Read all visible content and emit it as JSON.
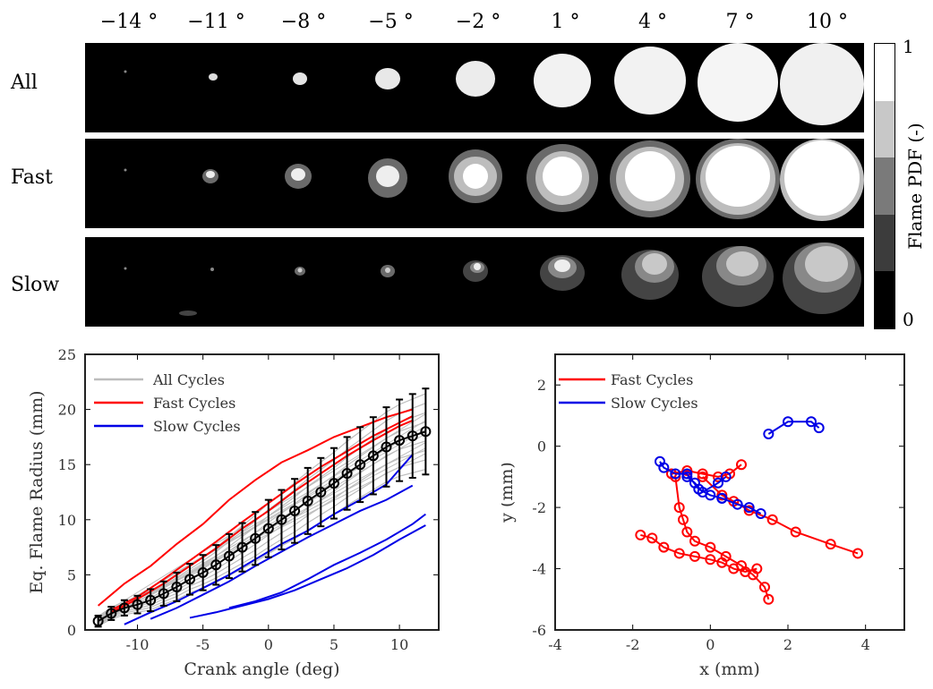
{
  "angles": [
    "−14 °",
    "−11 °",
    "−8 °",
    "−5 °",
    "−2 °",
    "1 °",
    "4 °",
    "7 °",
    "10 °"
  ],
  "rows": [
    "All",
    "Fast",
    "Slow"
  ],
  "colorbar": {
    "label": "Flame PDF (-)",
    "min": "0",
    "max": "1",
    "levels": [
      "#ffffff",
      "#c8c8c8",
      "#7a7a7a",
      "#3c3c3c",
      "#000000"
    ]
  },
  "colors": {
    "all": "#bdbdbd",
    "fast": "#ff0000",
    "slow": "#0000e6",
    "mean": "#000000"
  },
  "chart_data": [
    {
      "type": "line",
      "xlabel": "Crank angle (deg)",
      "ylabel": "Eq. Flame Radius (mm)",
      "xlim": [
        -14,
        13
      ],
      "ylim": [
        0,
        25
      ],
      "xticks": [
        -10,
        -5,
        0,
        5,
        10
      ],
      "yticks": [
        0,
        5,
        10,
        15,
        20,
        25
      ],
      "legend_position": "top-left",
      "legend": [
        "All Cycles",
        "Fast Cycles",
        "Slow Cycles"
      ],
      "mean_with_errorbars": {
        "x": [
          -13,
          -12,
          -11,
          -10,
          -9,
          -8,
          -7,
          -6,
          -5,
          -4,
          -3,
          -2,
          -1,
          0,
          1,
          2,
          3,
          4,
          5,
          6,
          7,
          8,
          9,
          10,
          11,
          12
        ],
        "y": [
          0.8,
          1.5,
          2.0,
          2.3,
          2.7,
          3.3,
          3.9,
          4.6,
          5.2,
          5.9,
          6.7,
          7.5,
          8.3,
          9.2,
          10.0,
          10.8,
          11.7,
          12.5,
          13.3,
          14.2,
          15.0,
          15.8,
          16.6,
          17.2,
          17.6,
          18.0
        ],
        "err": [
          0.5,
          0.6,
          0.7,
          0.8,
          1.0,
          1.1,
          1.3,
          1.4,
          1.6,
          1.8,
          2.0,
          2.2,
          2.4,
          2.6,
          2.7,
          2.9,
          3.0,
          3.1,
          3.2,
          3.3,
          3.4,
          3.5,
          3.6,
          3.7,
          3.8,
          3.9
        ]
      },
      "series": [
        {
          "name": "Fast Cycles",
          "x": [
            -13,
            -11,
            -9,
            -7,
            -5,
            -3,
            -1,
            1,
            3,
            5,
            7,
            9,
            11
          ],
          "y": [
            2.2,
            4.2,
            5.8,
            7.8,
            9.6,
            11.8,
            13.6,
            15.2,
            16.3,
            17.5,
            18.4,
            19.3,
            20.0
          ]
        },
        {
          "name": "Fast Cycles",
          "x": [
            -12,
            -10,
            -8,
            -6,
            -4,
            -2,
            0,
            2,
            4,
            6,
            8,
            10,
            11
          ],
          "y": [
            1.8,
            3.0,
            4.6,
            6.3,
            8.0,
            9.8,
            11.5,
            13.2,
            14.8,
            16.2,
            17.6,
            18.8,
            19.4
          ]
        },
        {
          "name": "Fast Cycles",
          "x": [
            -12,
            -10,
            -8,
            -6,
            -4,
            -2,
            0,
            2,
            4,
            6,
            8,
            10,
            11
          ],
          "y": [
            1.6,
            2.8,
            4.2,
            5.8,
            7.4,
            9.2,
            10.8,
            12.6,
            14.2,
            15.8,
            17.2,
            18.5,
            19.0
          ]
        },
        {
          "name": "Slow Cycles",
          "x": [
            -11,
            -9,
            -7,
            -5,
            -3,
            -1,
            1,
            3,
            5,
            7,
            9,
            11
          ],
          "y": [
            0.5,
            1.6,
            2.6,
            3.8,
            5.0,
            6.4,
            7.8,
            9.0,
            10.5,
            11.8,
            13.2,
            15.9
          ]
        },
        {
          "name": "Slow Cycles",
          "x": [
            -9,
            -7,
            -5,
            -3,
            -1,
            1,
            3,
            5,
            7,
            9,
            11
          ],
          "y": [
            1.0,
            2.0,
            3.2,
            4.4,
            5.8,
            7.1,
            8.4,
            9.6,
            10.8,
            11.8,
            13.1
          ]
        },
        {
          "name": "Slow Cycles",
          "x": [
            -3,
            -1,
            1,
            3,
            5,
            7,
            9,
            11,
            12
          ],
          "y": [
            2.0,
            2.6,
            3.4,
            4.6,
            5.9,
            7.0,
            8.2,
            9.6,
            10.5
          ]
        },
        {
          "name": "Slow Cycles",
          "x": [
            -6,
            -4,
            -2,
            0,
            2,
            4,
            6,
            8,
            10,
            12
          ],
          "y": [
            1.1,
            1.6,
            2.2,
            2.8,
            3.6,
            4.6,
            5.6,
            6.8,
            8.2,
            9.5
          ]
        }
      ],
      "all_cycles": [
        {
          "x": [
            -13,
            12
          ],
          "y": [
            1.0,
            18.5
          ]
        },
        {
          "x": [
            -13,
            12
          ],
          "y": [
            0.6,
            17.0
          ]
        },
        {
          "x": [
            -13,
            12
          ],
          "y": [
            0.9,
            19.0
          ]
        },
        {
          "x": [
            -13,
            12
          ],
          "y": [
            0.7,
            16.5
          ]
        },
        {
          "x": [
            -13,
            12
          ],
          "y": [
            1.2,
            19.6
          ]
        },
        {
          "x": [
            -13,
            12
          ],
          "y": [
            0.5,
            17.8
          ]
        },
        {
          "x": [
            -13,
            12
          ],
          "y": [
            0.8,
            16.0
          ]
        },
        {
          "x": [
            -13,
            12
          ],
          "y": [
            1.1,
            18.2
          ]
        }
      ]
    },
    {
      "type": "scatter",
      "xlabel": "x (mm)",
      "ylabel": "y (mm)",
      "xlim": [
        -4,
        5
      ],
      "ylim": [
        -6,
        3
      ],
      "xticks": [
        -4,
        -2,
        0,
        2,
        4
      ],
      "yticks": [
        -6,
        -4,
        -2,
        0,
        2
      ],
      "legend_position": "top-left",
      "legend": [
        "Fast Cycles",
        "Slow Cycles"
      ],
      "series": [
        {
          "name": "Fast Cycles",
          "x": [
            -0.2,
            0.3,
            0.6,
            1.0,
            1.6,
            2.2,
            3.1,
            3.8
          ],
          "y": [
            -1.0,
            -1.6,
            -1.8,
            -2.1,
            -2.4,
            -2.8,
            -3.2,
            -3.5
          ]
        },
        {
          "name": "Fast Cycles",
          "x": [
            -1.8,
            -1.5,
            -1.2,
            -0.8,
            -0.4,
            0.0,
            0.3,
            0.6,
            0.9,
            1.2
          ],
          "y": [
            -2.9,
            -3.0,
            -3.3,
            -3.5,
            -3.6,
            -3.7,
            -3.8,
            -4.0,
            -4.1,
            -4.0
          ]
        },
        {
          "name": "Fast Cycles",
          "x": [
            -0.9,
            -0.8,
            -0.7,
            -0.6,
            -0.4,
            0.0,
            0.4,
            0.8,
            1.1,
            1.4,
            1.5
          ],
          "y": [
            -1.0,
            -2.0,
            -2.4,
            -2.8,
            -3.1,
            -3.3,
            -3.6,
            -3.9,
            -4.2,
            -4.6,
            -5.0
          ]
        },
        {
          "name": "Fast Cycles",
          "x": [
            -1.0,
            -0.6,
            -0.2,
            0.2,
            0.5,
            0.8
          ],
          "y": [
            -0.9,
            -0.8,
            -0.9,
            -1.0,
            -0.9,
            -0.6
          ]
        },
        {
          "name": "Slow Cycles",
          "x": [
            -1.3,
            -1.2,
            -0.9,
            -0.6,
            -0.3,
            0.0,
            0.3
          ],
          "y": [
            -0.5,
            -0.7,
            -0.9,
            -0.9,
            -1.4,
            -1.6,
            -1.7
          ]
        },
        {
          "name": "Slow Cycles",
          "x": [
            0.3,
            0.7,
            1.0,
            1.3
          ],
          "y": [
            -1.7,
            -1.9,
            -2.0,
            -2.2
          ]
        },
        {
          "name": "Slow Cycles",
          "x": [
            -0.6,
            -0.4,
            -0.2,
            0.2,
            0.4
          ],
          "y": [
            -1.0,
            -1.2,
            -1.5,
            -1.2,
            -1.0
          ]
        },
        {
          "name": "Slow Cycles",
          "x": [
            1.5,
            2.0,
            2.6,
            2.8
          ],
          "y": [
            0.4,
            0.8,
            0.8,
            0.6
          ]
        }
      ]
    }
  ]
}
